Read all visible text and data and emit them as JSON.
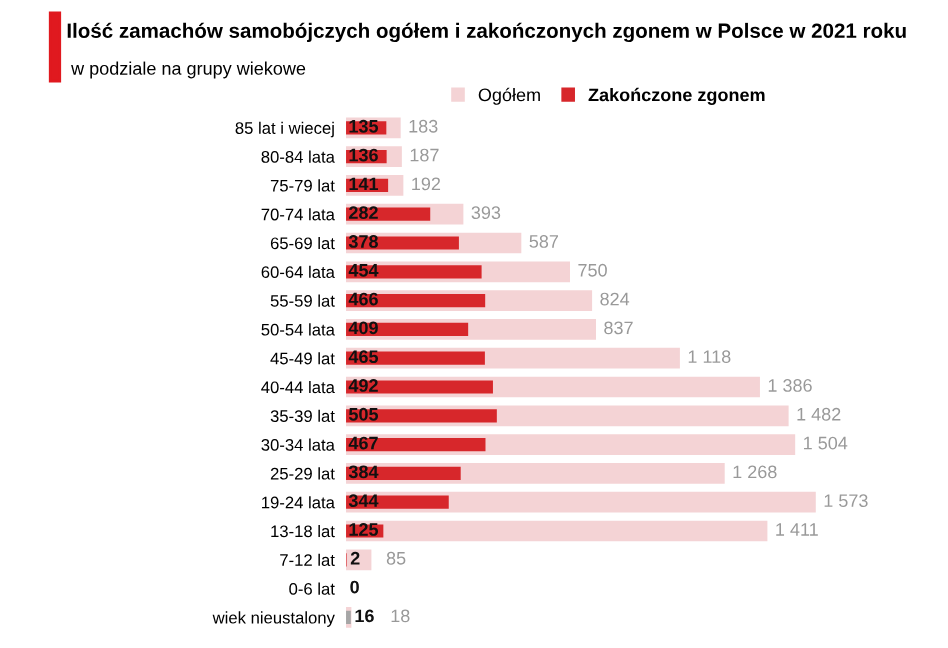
{
  "chart_data": {
    "type": "bar",
    "orientation": "horizontal",
    "title": "Ilość zamachów samobójczych ogółem i zakończonych zgonem w Polsce w 2021 roku",
    "subtitle": "w podziale na grupy wiekowe",
    "categories": [
      "85 lat i wiecej",
      "80-84 lata",
      "75-79 lat",
      "70-74 lata",
      "65-69 lat",
      "60-64 lata",
      "55-59 lat",
      "50-54 lata",
      "45-49 lat",
      "40-44 lata",
      "35-39 lat",
      "30-34 lata",
      "25-29 lat",
      "19-24 lata",
      "13-18 lat",
      "7-12 lat",
      "0-6 lat",
      "wiek nieustalony"
    ],
    "series": [
      {
        "name": "Ogółem",
        "color": "#f4d3d5",
        "values": [
          183,
          187,
          192,
          393,
          587,
          750,
          824,
          837,
          1118,
          1386,
          1482,
          1504,
          1268,
          1573,
          1411,
          85,
          null,
          18
        ],
        "value_labels": [
          "183",
          "187",
          "192",
          "393",
          "587",
          "750",
          "824",
          "837",
          "1 118",
          "1 386",
          "1 482",
          "1 504",
          "1 268",
          "1 573",
          "1 411",
          "85",
          null,
          "18"
        ]
      },
      {
        "name": "Zakończone zgonem",
        "color": "#d7272b",
        "colors": [
          "#d7272b",
          "#d7272b",
          "#d7272b",
          "#d7272b",
          "#d7272b",
          "#d7272b",
          "#d7272b",
          "#d7272b",
          "#d7272b",
          "#d7272b",
          "#d7272b",
          "#d7272b",
          "#d7272b",
          "#d7272b",
          "#d7272b",
          "#d7272b",
          "#d7272b",
          "#a6a6a6"
        ],
        "values": [
          135,
          136,
          141,
          282,
          378,
          454,
          466,
          409,
          465,
          492,
          505,
          467,
          384,
          344,
          125,
          2,
          0,
          16
        ],
        "value_labels": [
          "135",
          "136",
          "141",
          "282",
          "378",
          "454",
          "466",
          "409",
          "465",
          "492",
          "505",
          "467",
          "384",
          "344",
          "125",
          "2",
          "0",
          "16"
        ]
      }
    ],
    "legend": "top",
    "grid": false
  }
}
